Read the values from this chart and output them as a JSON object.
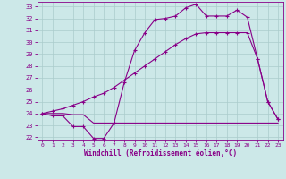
{
  "bg_color": "#cce8e8",
  "grid_color": "#aacccc",
  "line_color": "#880088",
  "xlabel": "Windchill (Refroidissement éolien,°C)",
  "xlim": [
    -0.5,
    23.5
  ],
  "ylim": [
    21.8,
    33.4
  ],
  "yticks": [
    22,
    23,
    24,
    25,
    26,
    27,
    28,
    29,
    30,
    31,
    32,
    33
  ],
  "xticks": [
    0,
    1,
    2,
    3,
    4,
    5,
    6,
    7,
    8,
    9,
    10,
    11,
    12,
    13,
    14,
    15,
    16,
    17,
    18,
    19,
    20,
    21,
    22,
    23
  ],
  "line1_x": [
    0,
    1,
    2,
    3,
    4,
    5,
    6,
    7,
    8,
    9,
    10,
    11,
    12,
    13,
    14,
    15,
    16,
    17,
    18,
    19,
    20,
    21,
    22,
    23
  ],
  "line1_y": [
    24.0,
    23.8,
    23.8,
    22.9,
    22.9,
    21.9,
    21.9,
    23.2,
    26.6,
    29.3,
    30.8,
    31.9,
    32.0,
    32.2,
    32.9,
    33.2,
    32.2,
    32.2,
    32.2,
    32.7,
    32.1,
    28.6,
    25.0,
    23.5
  ],
  "line2_x": [
    0,
    1,
    2,
    3,
    4,
    5,
    6,
    7,
    8,
    9,
    10,
    11,
    12,
    13,
    14,
    15,
    16,
    17,
    18,
    19,
    20,
    21,
    22,
    23
  ],
  "line2_y": [
    24.0,
    24.0,
    24.0,
    23.9,
    23.9,
    23.2,
    23.2,
    23.2,
    23.2,
    23.2,
    23.2,
    23.2,
    23.2,
    23.2,
    23.2,
    23.2,
    23.2,
    23.2,
    23.2,
    23.2,
    23.2,
    23.2,
    23.2,
    23.2
  ],
  "line3_x": [
    0,
    1,
    2,
    3,
    4,
    5,
    6,
    7,
    8,
    9,
    10,
    11,
    12,
    13,
    14,
    15,
    16,
    17,
    18,
    19,
    20,
    21,
    22,
    23
  ],
  "line3_y": [
    24.0,
    24.2,
    24.4,
    24.7,
    25.0,
    25.4,
    25.7,
    26.2,
    26.8,
    27.4,
    28.0,
    28.6,
    29.2,
    29.8,
    30.3,
    30.7,
    30.8,
    30.8,
    30.8,
    30.8,
    30.8,
    28.6,
    25.0,
    23.5
  ],
  "font_size_tick": 5,
  "font_size_xlabel": 5.5
}
